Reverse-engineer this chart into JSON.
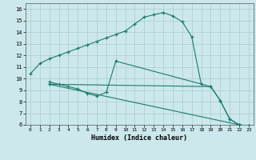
{
  "xlabel": "Humidex (Indice chaleur)",
  "bg_color": "#cce8ec",
  "grid_color": "#aacccc",
  "line_color": "#1a7a6e",
  "xlim": [
    -0.5,
    23.5
  ],
  "ylim": [
    6,
    16.5
  ],
  "xticks": [
    0,
    1,
    2,
    3,
    4,
    5,
    6,
    7,
    8,
    9,
    10,
    11,
    12,
    13,
    14,
    15,
    16,
    17,
    18,
    19,
    20,
    21,
    22,
    23
  ],
  "yticks": [
    6,
    7,
    8,
    9,
    10,
    11,
    12,
    13,
    14,
    15,
    16
  ],
  "lines": [
    {
      "x": [
        0,
        1,
        2,
        3,
        4,
        5,
        6,
        7,
        8,
        9,
        10,
        11,
        12,
        13,
        14,
        15,
        16,
        17,
        18
      ],
      "y": [
        10.4,
        11.3,
        11.7,
        12.0,
        12.3,
        12.6,
        12.9,
        13.2,
        13.5,
        13.8,
        14.1,
        14.7,
        15.3,
        15.5,
        15.7,
        15.4,
        14.9,
        13.6,
        9.5
      ]
    },
    {
      "x": [
        2,
        3,
        4,
        5,
        6,
        7,
        8,
        9,
        19,
        20,
        21,
        22,
        23
      ],
      "y": [
        9.7,
        9.5,
        9.3,
        9.1,
        8.7,
        8.5,
        8.8,
        11.5,
        9.3,
        8.1,
        6.5,
        6.0,
        5.9
      ]
    },
    {
      "x": [
        2,
        19,
        20,
        21,
        22,
        23
      ],
      "y": [
        9.5,
        9.3,
        8.1,
        6.5,
        6.0,
        5.9
      ]
    },
    {
      "x": [
        2,
        22,
        23
      ],
      "y": [
        9.5,
        6.0,
        5.9
      ]
    }
  ]
}
